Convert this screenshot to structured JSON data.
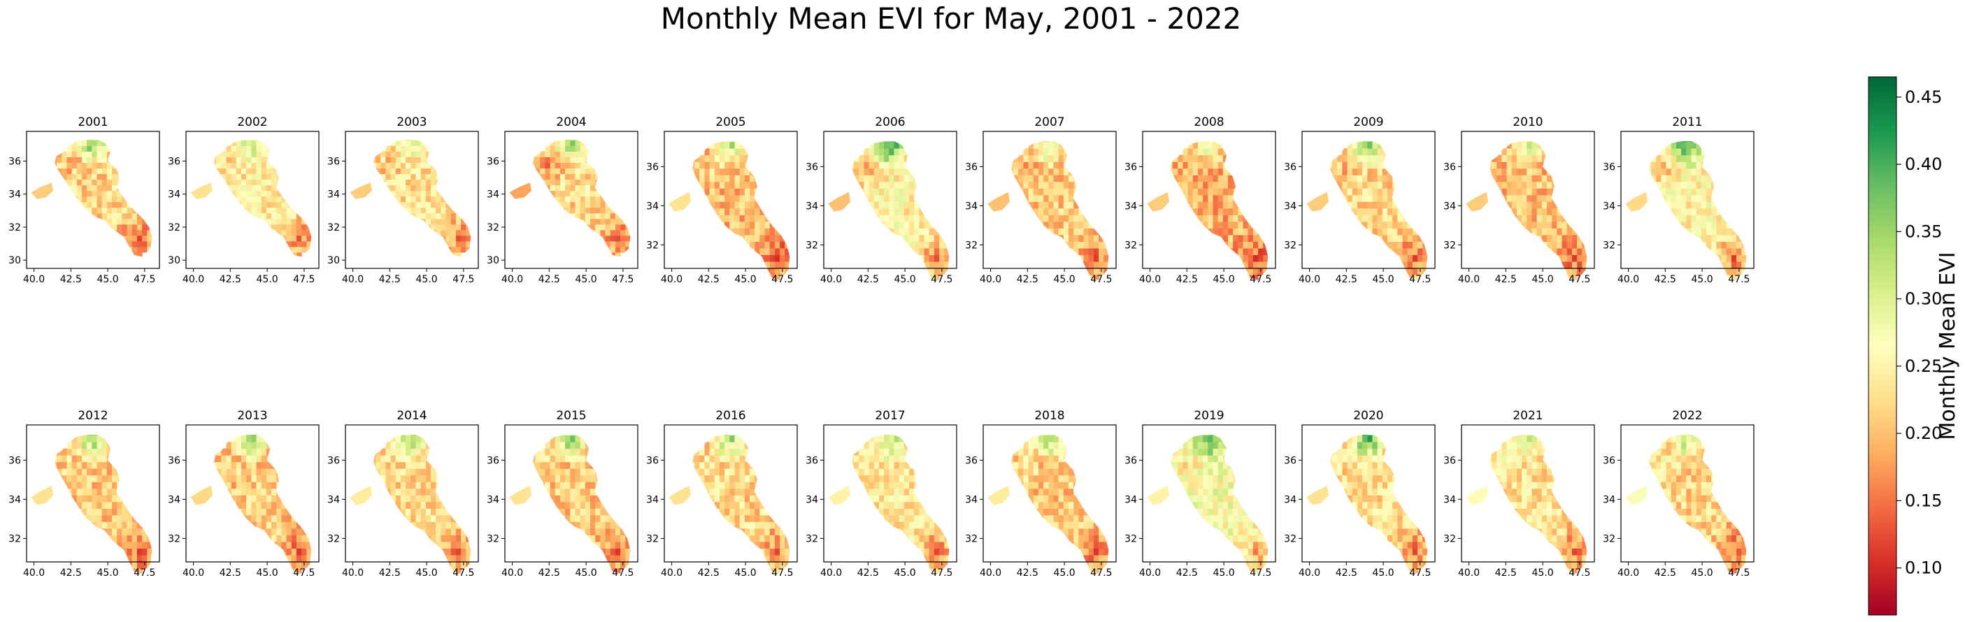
{
  "figure": {
    "title": "Monthly Mean EVI for May, 2001 - 2022"
  },
  "colorbar": {
    "label": "Monthly Mean EVI",
    "min": 0.065,
    "max": 0.465,
    "ticks": [
      0.1,
      0.15,
      0.2,
      0.25,
      0.3,
      0.35,
      0.4,
      0.45
    ],
    "tick_labels": [
      "0.10",
      "0.15",
      "0.20",
      "0.25",
      "0.30",
      "0.35",
      "0.40",
      "0.45"
    ],
    "colormap": "RdYlGn",
    "colormap_stops": [
      "#a50026",
      "#d73027",
      "#f46d43",
      "#fdae61",
      "#fee08b",
      "#ffffbf",
      "#d9ef8b",
      "#a6d96a",
      "#66bd63",
      "#1a9850",
      "#006837"
    ]
  },
  "chart_data": {
    "type": "choropleth-small-multiples",
    "title": "Monthly Mean EVI for May, 2001 - 2022",
    "xlim": [
      39.5,
      48.5
    ],
    "xticks": [
      40.0,
      42.5,
      45.0,
      47.5
    ],
    "xtick_labels": [
      "40.0",
      "42.5",
      "45.0",
      "47.5"
    ],
    "ylim_full": [
      29.5,
      37.8
    ],
    "yticks_full": [
      30,
      32,
      34,
      36
    ],
    "ylim_clipped": [
      30.8,
      37.8
    ],
    "yticks_clipped": [
      32,
      34,
      36
    ],
    "panels": [
      {
        "title": "2001",
        "year": 2001,
        "yticks": "full",
        "mean": 0.19,
        "north": 0.38,
        "west": 0.2,
        "center": 0.22,
        "southeast": 0.15
      },
      {
        "title": "2002",
        "year": 2002,
        "yticks": "full",
        "mean": 0.2,
        "north": 0.33,
        "west": 0.22,
        "center": 0.24,
        "southeast": 0.16
      },
      {
        "title": "2003",
        "year": 2003,
        "yticks": "full",
        "mean": 0.2,
        "north": 0.3,
        "west": 0.2,
        "center": 0.23,
        "southeast": 0.16
      },
      {
        "title": "2004",
        "year": 2004,
        "yticks": "full",
        "mean": 0.19,
        "north": 0.36,
        "west": 0.17,
        "center": 0.22,
        "southeast": 0.16
      },
      {
        "title": "2005",
        "year": 2005,
        "yticks": "clipped",
        "mean": 0.17,
        "north": 0.33,
        "west": 0.22,
        "center": 0.2,
        "southeast": 0.14
      },
      {
        "title": "2006",
        "year": 2006,
        "yticks": "clipped",
        "mean": 0.2,
        "north": 0.42,
        "west": 0.19,
        "center": 0.25,
        "southeast": 0.16
      },
      {
        "title": "2007",
        "year": 2007,
        "yticks": "clipped",
        "mean": 0.18,
        "north": 0.3,
        "west": 0.19,
        "center": 0.21,
        "southeast": 0.15
      },
      {
        "title": "2008",
        "year": 2008,
        "yticks": "clipped",
        "mean": 0.16,
        "north": 0.28,
        "west": 0.2,
        "center": 0.19,
        "southeast": 0.14
      },
      {
        "title": "2009",
        "year": 2009,
        "yticks": "clipped",
        "mean": 0.18,
        "north": 0.38,
        "west": 0.2,
        "center": 0.22,
        "southeast": 0.15
      },
      {
        "title": "2010",
        "year": 2010,
        "yticks": "clipped",
        "mean": 0.17,
        "north": 0.3,
        "west": 0.2,
        "center": 0.2,
        "southeast": 0.15
      },
      {
        "title": "2011",
        "year": 2011,
        "yticks": "clipped",
        "mean": 0.2,
        "north": 0.42,
        "west": 0.21,
        "center": 0.25,
        "southeast": 0.15
      },
      {
        "title": "2012",
        "year": 2012,
        "yticks": "clipped",
        "mean": 0.18,
        "north": 0.36,
        "west": 0.22,
        "center": 0.21,
        "southeast": 0.15
      },
      {
        "title": "2013",
        "year": 2013,
        "yticks": "clipped",
        "mean": 0.18,
        "north": 0.38,
        "west": 0.21,
        "center": 0.21,
        "southeast": 0.15
      },
      {
        "title": "2014",
        "year": 2014,
        "yticks": "clipped",
        "mean": 0.19,
        "north": 0.33,
        "west": 0.23,
        "center": 0.22,
        "southeast": 0.16
      },
      {
        "title": "2015",
        "year": 2015,
        "yticks": "clipped",
        "mean": 0.18,
        "north": 0.37,
        "west": 0.22,
        "center": 0.21,
        "southeast": 0.15
      },
      {
        "title": "2016",
        "year": 2016,
        "yticks": "clipped",
        "mean": 0.19,
        "north": 0.34,
        "west": 0.22,
        "center": 0.22,
        "southeast": 0.16
      },
      {
        "title": "2017",
        "year": 2017,
        "yticks": "clipped",
        "mean": 0.2,
        "north": 0.33,
        "west": 0.24,
        "center": 0.24,
        "southeast": 0.16
      },
      {
        "title": "2018",
        "year": 2018,
        "yticks": "clipped",
        "mean": 0.18,
        "north": 0.36,
        "west": 0.23,
        "center": 0.21,
        "southeast": 0.15
      },
      {
        "title": "2019",
        "year": 2019,
        "yticks": "clipped",
        "mean": 0.24,
        "north": 0.4,
        "west": 0.24,
        "center": 0.27,
        "southeast": 0.19
      },
      {
        "title": "2020",
        "year": 2020,
        "yticks": "clipped",
        "mean": 0.2,
        "north": 0.42,
        "west": 0.22,
        "center": 0.23,
        "southeast": 0.16
      },
      {
        "title": "2021",
        "year": 2021,
        "yticks": "clipped",
        "mean": 0.19,
        "north": 0.3,
        "west": 0.25,
        "center": 0.23,
        "southeast": 0.16
      },
      {
        "title": "2022",
        "year": 2022,
        "yticks": "clipped",
        "mean": 0.18,
        "north": 0.33,
        "west": 0.26,
        "center": 0.22,
        "southeast": 0.14
      }
    ]
  }
}
